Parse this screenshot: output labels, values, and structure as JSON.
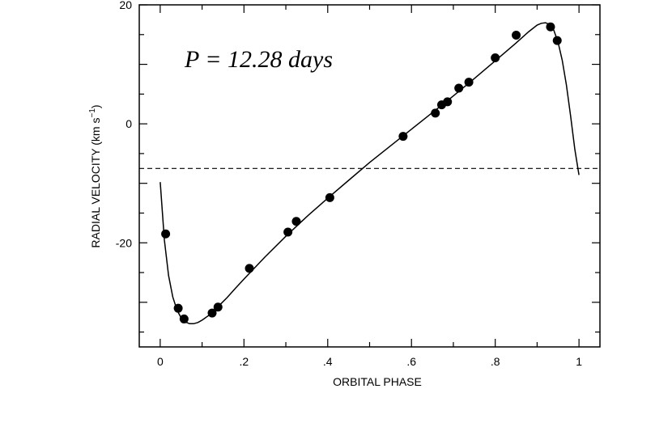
{
  "chart_data": {
    "type": "scatter",
    "xlabel": "ORBITAL PHASE",
    "ylabel": "RADIAL  VELOCITY  (km  s",
    "ylabel_exponent": "−1",
    "ylabel_close": ")",
    "annotation": "P = 12.28 days",
    "xlim": [
      -0.05,
      1.05
    ],
    "ylim": [
      -37.5,
      20
    ],
    "x_ticks": [
      {
        "value": 0,
        "label": "0"
      },
      {
        "value": 0.2,
        "label": ".2"
      },
      {
        "value": 0.4,
        "label": ".4"
      },
      {
        "value": 0.6,
        "label": ".6"
      },
      {
        "value": 0.8,
        "label": ".8"
      },
      {
        "value": 1,
        "label": "1"
      }
    ],
    "y_ticks": [
      {
        "value": 20,
        "label": "20"
      },
      {
        "value": 0,
        "label": "0"
      },
      {
        "value": -20,
        "label": "-20"
      }
    ],
    "systemic_velocity": -7.5,
    "points": [
      {
        "x": 0.013,
        "y": -18.5
      },
      {
        "x": 0.043,
        "y": -31.0
      },
      {
        "x": 0.057,
        "y": -32.8
      },
      {
        "x": 0.124,
        "y": -31.8
      },
      {
        "x": 0.138,
        "y": -30.8
      },
      {
        "x": 0.213,
        "y": -24.3
      },
      {
        "x": 0.305,
        "y": -18.2
      },
      {
        "x": 0.325,
        "y": -16.4
      },
      {
        "x": 0.405,
        "y": -12.4
      },
      {
        "x": 0.58,
        "y": -2.1
      },
      {
        "x": 0.657,
        "y": 1.8
      },
      {
        "x": 0.672,
        "y": 3.2
      },
      {
        "x": 0.686,
        "y": 3.7
      },
      {
        "x": 0.713,
        "y": 6.0
      },
      {
        "x": 0.737,
        "y": 7.0
      },
      {
        "x": 0.8,
        "y": 11.1
      },
      {
        "x": 0.85,
        "y": 14.9
      },
      {
        "x": 0.932,
        "y": 16.3
      },
      {
        "x": 0.948,
        "y": 14.0
      }
    ],
    "fit_curve": [
      {
        "x": 0.0,
        "y": -9.8
      },
      {
        "x": 0.01,
        "y": -19.5
      },
      {
        "x": 0.02,
        "y": -25.5
      },
      {
        "x": 0.03,
        "y": -29.1
      },
      {
        "x": 0.04,
        "y": -31.3
      },
      {
        "x": 0.05,
        "y": -32.6
      },
      {
        "x": 0.06,
        "y": -33.3
      },
      {
        "x": 0.07,
        "y": -33.6
      },
      {
        "x": 0.08,
        "y": -33.6
      },
      {
        "x": 0.09,
        "y": -33.4
      },
      {
        "x": 0.1,
        "y": -33.0
      },
      {
        "x": 0.12,
        "y": -32.0
      },
      {
        "x": 0.14,
        "y": -30.6
      },
      {
        "x": 0.16,
        "y": -29.2
      },
      {
        "x": 0.18,
        "y": -27.6
      },
      {
        "x": 0.2,
        "y": -26.1
      },
      {
        "x": 0.25,
        "y": -22.4
      },
      {
        "x": 0.3,
        "y": -18.9
      },
      {
        "x": 0.35,
        "y": -15.6
      },
      {
        "x": 0.4,
        "y": -12.5
      },
      {
        "x": 0.45,
        "y": -9.5
      },
      {
        "x": 0.5,
        "y": -6.5
      },
      {
        "x": 0.55,
        "y": -3.7
      },
      {
        "x": 0.6,
        "y": -0.9
      },
      {
        "x": 0.65,
        "y": 1.9
      },
      {
        "x": 0.7,
        "y": 4.7
      },
      {
        "x": 0.75,
        "y": 7.6
      },
      {
        "x": 0.8,
        "y": 10.6
      },
      {
        "x": 0.85,
        "y": 13.6
      },
      {
        "x": 0.88,
        "y": 15.5
      },
      {
        "x": 0.9,
        "y": 16.6
      },
      {
        "x": 0.91,
        "y": 16.9
      },
      {
        "x": 0.92,
        "y": 17.0
      },
      {
        "x": 0.93,
        "y": 16.7
      },
      {
        "x": 0.94,
        "y": 15.7
      },
      {
        "x": 0.95,
        "y": 13.7
      },
      {
        "x": 0.96,
        "y": 10.7
      },
      {
        "x": 0.97,
        "y": 6.5
      },
      {
        "x": 0.98,
        "y": 1.3
      },
      {
        "x": 0.99,
        "y": -4.3
      },
      {
        "x": 1.0,
        "y": -8.6
      }
    ],
    "grid": false,
    "legend": "none"
  }
}
